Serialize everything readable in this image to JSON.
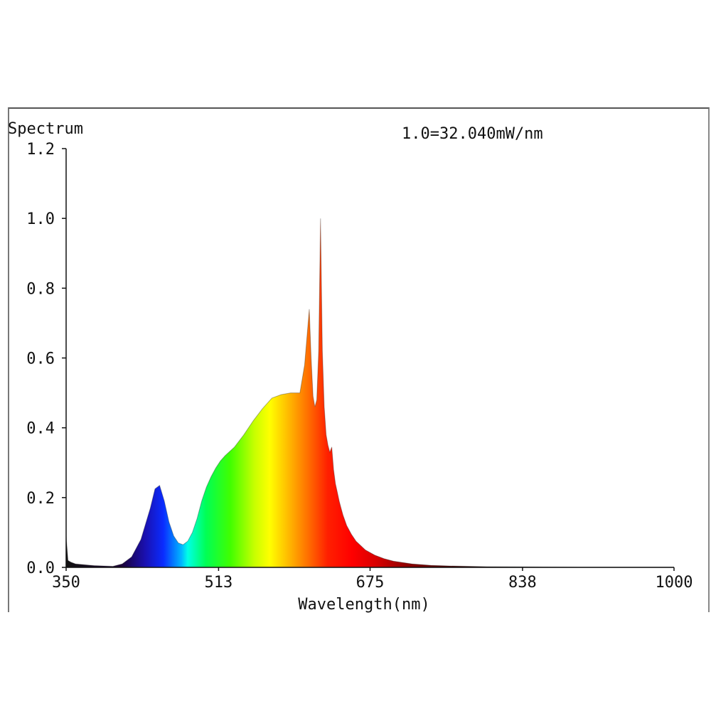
{
  "chart_data": {
    "type": "area",
    "title": "Spectrum",
    "annotation": "1.0=32.040mW/nm",
    "xlabel": "Wavelength(nm)",
    "ylabel": "",
    "xlim": [
      350,
      1000
    ],
    "ylim": [
      0,
      1.2
    ],
    "x_ticks": [
      350,
      513,
      675,
      838,
      1000
    ],
    "x_tick_labels": [
      "350",
      "513",
      "675",
      "838",
      "1000"
    ],
    "y_ticks": [
      0,
      0.2,
      0.4,
      0.6,
      0.8,
      1.0,
      1.2
    ],
    "y_tick_labels": [
      "0.0",
      "0.2",
      "0.4",
      "0.6",
      "0.8",
      "1.0",
      "1.2"
    ],
    "grid": false,
    "fill": "visible-spectrum colors by wavelength",
    "series": [
      {
        "x": [
          350,
          352,
          355,
          360,
          380,
          400,
          410,
          420,
          430,
          440,
          445,
          450,
          455,
          460,
          465,
          470,
          475,
          480,
          485,
          490,
          495,
          500,
          505,
          510,
          515,
          520,
          530,
          540,
          550,
          560,
          570,
          580,
          590,
          600,
          605,
          610,
          612,
          614,
          616,
          618,
          620,
          622,
          624,
          626,
          628,
          630,
          632,
          634,
          636,
          638,
          640,
          642,
          644,
          646,
          648,
          650,
          655,
          660,
          670,
          680,
          690,
          700,
          720,
          740,
          760,
          780,
          800,
          840,
          900,
          960,
          1000
        ],
        "y": [
          0.09,
          0.02,
          0.015,
          0.01,
          0.005,
          0.003,
          0.01,
          0.03,
          0.08,
          0.17,
          0.225,
          0.235,
          0.19,
          0.13,
          0.09,
          0.07,
          0.065,
          0.075,
          0.1,
          0.14,
          0.19,
          0.23,
          0.26,
          0.285,
          0.305,
          0.32,
          0.345,
          0.38,
          0.42,
          0.455,
          0.485,
          0.495,
          0.5,
          0.5,
          0.58,
          0.74,
          0.6,
          0.49,
          0.46,
          0.48,
          0.62,
          1.0,
          0.62,
          0.46,
          0.38,
          0.35,
          0.33,
          0.345,
          0.28,
          0.24,
          0.215,
          0.19,
          0.17,
          0.15,
          0.135,
          0.12,
          0.095,
          0.075,
          0.05,
          0.035,
          0.025,
          0.018,
          0.01,
          0.006,
          0.004,
          0.003,
          0.002,
          0.0015,
          0.001,
          0.001,
          0.001
        ]
      }
    ]
  }
}
